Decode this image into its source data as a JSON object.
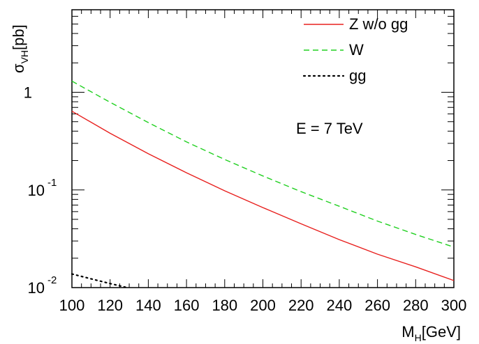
{
  "chart_data": {
    "type": "line",
    "xlabel": {
      "main": "M",
      "sub": "H",
      "rest": "[GeV]"
    },
    "ylabel": {
      "main": "σ",
      "sub": "VH",
      "rest": "[pb]"
    },
    "xlim": [
      100,
      300
    ],
    "ylim": [
      0.01,
      7
    ],
    "yscale": "log",
    "x_ticks": [
      "100",
      "120",
      "140",
      "160",
      "180",
      "200",
      "220",
      "240",
      "260",
      "280",
      "300"
    ],
    "y_ticks": [
      {
        "base": "10",
        "exp": "-2"
      },
      {
        "base": "10",
        "exp": "-1"
      },
      {
        "base": "1",
        "exp": ""
      }
    ],
    "annotation": "E = 7 TeV",
    "legend_position": "top-right",
    "x": [
      100,
      120,
      140,
      160,
      180,
      200,
      220,
      240,
      260,
      280,
      300
    ],
    "series": [
      {
        "name": "Z w/o gg",
        "color": "#e8201e",
        "dash": "solid",
        "values": [
          0.64,
          0.38,
          0.235,
          0.15,
          0.098,
          0.066,
          0.045,
          0.031,
          0.022,
          0.0163,
          0.0118
        ]
      },
      {
        "name": "W",
        "color": "#20d020",
        "dash": "dashed",
        "values": [
          1.3,
          0.79,
          0.49,
          0.31,
          0.205,
          0.139,
          0.096,
          0.068,
          0.048,
          0.035,
          0.026
        ]
      },
      {
        "name": "gg",
        "color": "#000000",
        "dash": "dotted",
        "x": [
          100,
          110,
          120,
          128
        ],
        "values": [
          0.0138,
          0.0123,
          0.011,
          0.0101
        ]
      }
    ]
  }
}
